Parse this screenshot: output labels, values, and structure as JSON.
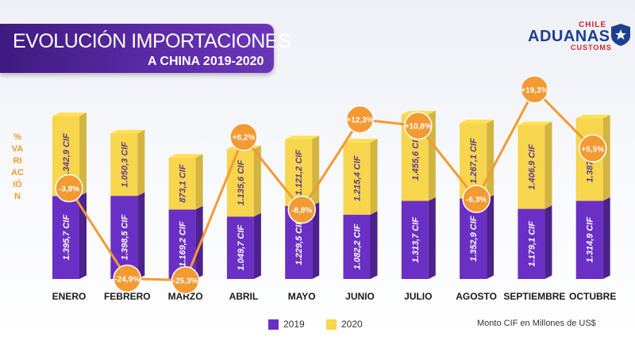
{
  "title": {
    "line1": "EVOLUCIÓN IMPORTACIONES",
    "line2": "A CHINA 2019-2020"
  },
  "logo": {
    "chile": "CHILE",
    "aduanas": "ADUANAS",
    "customs": "CUSTOMS",
    "icon": "customs-star-badge"
  },
  "ylabel": "% VARIACIÓN",
  "note": "Monto CIF en Millones de US$",
  "legend": [
    {
      "label": "2019",
      "color": "#6a2fc4"
    },
    {
      "label": "2020",
      "color": "#f7d54d"
    }
  ],
  "colors": {
    "s2019": "#6a2fc4",
    "s2020": "#f7d54d",
    "line": "#f39a32",
    "title_bg": "#4b2190"
  },
  "chart_data": {
    "type": "bar",
    "stacked": true,
    "categories": [
      "ENERO",
      "FEBRERO",
      "MARZO",
      "ABRIL",
      "MAYO",
      "JUNIO",
      "JULIO",
      "AGOSTO",
      "SEPTIEMBRE",
      "OCTUBRE"
    ],
    "series": [
      {
        "name": "2019",
        "values": [
          1395.7,
          1398.5,
          1169.2,
          1049.7,
          1229.5,
          1082.2,
          1313.7,
          1352.9,
          1179.1,
          1314.9
        ],
        "labels": [
          "1.395,7 CIF",
          "1.398,5 CIF",
          "1.169,2 CIF",
          "1.049,7 CIF",
          "1.229,5 CIF",
          "1.082,2 CIF",
          "1.313,7 CIF",
          "1.352,9 CIF",
          "1.179,1 CIF",
          "1.314,9 CIF"
        ]
      },
      {
        "name": "2020",
        "values": [
          1342.9,
          1050.3,
          873.1,
          1135.6,
          1121.2,
          1215.4,
          1455.6,
          1267.1,
          1406.9,
          1387.6
        ],
        "labels": [
          "1.342,9 CIF",
          "1.050,3 CIF",
          "873,1 CIF",
          "1.135,6 CIF",
          "1.121,2 CIF",
          "1.215,4 CIF",
          "1.455,6 CIF",
          "1.267,1 CIF",
          "1.406,9 CIF",
          "1.387,6 CIF"
        ]
      }
    ],
    "variation": {
      "ylabel": "% VARIACIÓN",
      "values": [
        -3.8,
        -24.9,
        -25.3,
        8.2,
        -8.8,
        12.3,
        10.8,
        -6.3,
        19.3,
        5.5
      ],
      "labels": [
        "-3,8%",
        "-24,9%",
        "-25,3%",
        "+8,2%",
        "-8,8%",
        "+12,3%",
        "+10,8%",
        "-6,3%",
        "+19,3%",
        "+5,5%"
      ]
    },
    "unit": "Monto CIF en Millones de US$"
  }
}
